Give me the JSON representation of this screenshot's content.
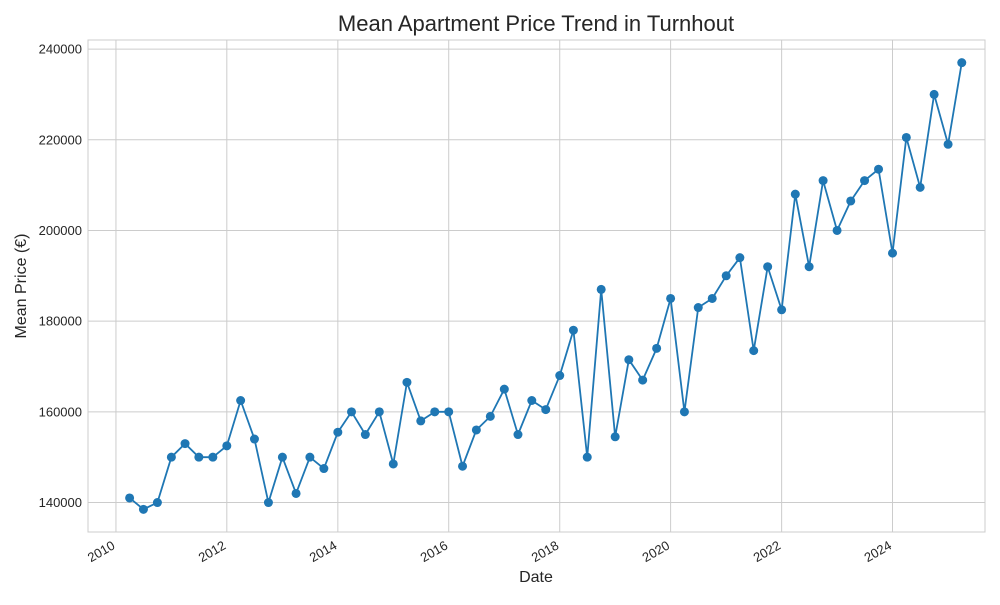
{
  "chart_data": {
    "type": "line",
    "title": "Mean Apartment Price Trend in Turnhout",
    "xlabel": "Date",
    "ylabel": "Mean Price (€)",
    "xlim": [
      "2009-07-01",
      "2025-09-01"
    ],
    "ylim": [
      133500,
      242000
    ],
    "x_ticks": [
      "2010",
      "2012",
      "2014",
      "2016",
      "2018",
      "2020",
      "2022",
      "2024"
    ],
    "y_ticks": [
      140000,
      160000,
      180000,
      200000,
      220000,
      240000
    ],
    "grid": true,
    "legend": "none",
    "colors": {
      "line": "#1f77b4",
      "grid": "#cccccc",
      "axes": "#cccccc"
    },
    "series": [
      {
        "x": [
          "2010-04-01",
          "2010-07-01",
          "2010-10-01",
          "2011-01-01",
          "2011-04-01",
          "2011-07-01",
          "2011-10-01",
          "2012-01-01",
          "2012-04-01",
          "2012-07-01",
          "2012-10-01",
          "2013-01-01",
          "2013-04-01",
          "2013-07-01",
          "2013-10-01",
          "2014-01-01",
          "2014-04-01",
          "2014-07-01",
          "2014-10-01",
          "2015-01-01",
          "2015-04-01",
          "2015-07-01",
          "2015-10-01",
          "2016-01-01",
          "2016-04-01",
          "2016-07-01",
          "2016-10-01",
          "2017-01-01",
          "2017-04-01",
          "2017-07-01",
          "2017-10-01",
          "2018-01-01",
          "2018-04-01",
          "2018-07-01",
          "2018-10-01",
          "2019-01-01",
          "2019-04-01",
          "2019-07-01",
          "2019-10-01",
          "2020-01-01",
          "2020-04-01",
          "2020-07-01",
          "2020-10-01",
          "2021-01-01",
          "2021-04-01",
          "2021-07-01",
          "2021-10-01",
          "2022-01-01",
          "2022-04-01",
          "2022-07-01",
          "2022-10-01",
          "2023-01-01",
          "2023-04-01",
          "2023-07-01",
          "2023-10-01",
          "2024-01-01",
          "2024-04-01",
          "2024-07-01",
          "2024-10-01",
          "2025-01-01",
          "2025-04-01"
        ],
        "y": [
          141000,
          138500,
          140000,
          150000,
          153000,
          150000,
          150000,
          152500,
          162500,
          154000,
          140000,
          150000,
          142000,
          150000,
          147500,
          155500,
          160000,
          155000,
          160000,
          148500,
          166500,
          158000,
          160000,
          160000,
          148000,
          156000,
          159000,
          165000,
          155000,
          162500,
          160500,
          168000,
          178000,
          150000,
          187000,
          154500,
          171500,
          167000,
          174000,
          185000,
          160000,
          183000,
          185000,
          190000,
          194000,
          173500,
          192000,
          182500,
          208000,
          192000,
          211000,
          200000,
          206500,
          211000,
          213500,
          195000,
          220500,
          209500,
          230000,
          219000,
          237000
        ]
      }
    ]
  }
}
